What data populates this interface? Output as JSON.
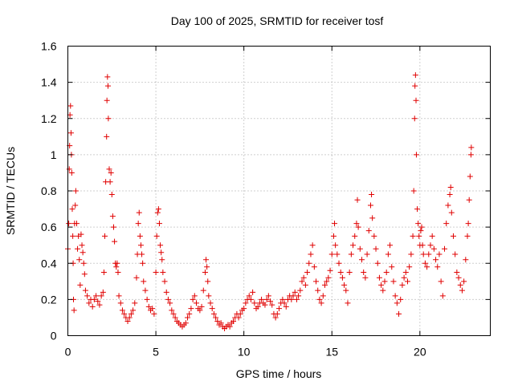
{
  "chart_data": {
    "type": "scatter",
    "title": "Day 100 of 2025, SRMTID for receiver tosf",
    "xlabel": "GPS time / hours",
    "ylabel": "SRMTID / TECUs",
    "xlim": [
      0,
      24
    ],
    "ylim": [
      0,
      1.6
    ],
    "x_ticks": [
      0,
      5,
      10,
      15,
      20
    ],
    "x_tick_labels": [
      "0",
      "5",
      "10",
      "15",
      "20"
    ],
    "y_ticks": [
      0,
      0.2,
      0.4,
      0.6,
      0.8,
      1,
      1.2,
      1.4,
      1.6
    ],
    "y_tick_labels": [
      "0",
      "0.2",
      "0.4",
      "0.6",
      "0.8",
      "1",
      "1.2",
      "1.4",
      "1.6"
    ],
    "grid": true,
    "marker": "plus",
    "series": [
      {
        "name": "SRMTID",
        "color": "#e00000",
        "points": [
          [
            0.0,
            0.48
          ],
          [
            0.05,
            0.62
          ],
          [
            0.08,
            0.92
          ],
          [
            0.1,
            1.05
          ],
          [
            0.12,
            1.22
          ],
          [
            0.15,
            1.27
          ],
          [
            0.18,
            1.12
          ],
          [
            0.2,
            1.0
          ],
          [
            0.22,
            0.9
          ],
          [
            0.25,
            0.7
          ],
          [
            0.28,
            0.55
          ],
          [
            0.3,
            0.4
          ],
          [
            0.32,
            0.2
          ],
          [
            0.35,
            0.14
          ],
          [
            0.38,
            0.62
          ],
          [
            0.42,
            0.72
          ],
          [
            0.45,
            0.8
          ],
          [
            0.5,
            0.62
          ],
          [
            0.55,
            0.48
          ],
          [
            0.6,
            0.55
          ],
          [
            0.65,
            0.42
          ],
          [
            0.7,
            0.28
          ],
          [
            0.75,
            0.56
          ],
          [
            0.8,
            0.5
          ],
          [
            0.85,
            0.46
          ],
          [
            0.9,
            0.4
          ],
          [
            0.95,
            0.34
          ],
          [
            1.0,
            0.25
          ],
          [
            1.1,
            0.22
          ],
          [
            1.2,
            0.18
          ],
          [
            1.3,
            0.2
          ],
          [
            1.4,
            0.16
          ],
          [
            1.5,
            0.2
          ],
          [
            1.6,
            0.22
          ],
          [
            1.7,
            0.19
          ],
          [
            1.8,
            0.17
          ],
          [
            1.9,
            0.22
          ],
          [
            2.0,
            0.24
          ],
          [
            2.05,
            0.35
          ],
          [
            2.1,
            0.55
          ],
          [
            2.15,
            0.85
          ],
          [
            2.2,
            1.1
          ],
          [
            2.22,
            1.3
          ],
          [
            2.25,
            1.43
          ],
          [
            2.28,
            1.38
          ],
          [
            2.3,
            1.2
          ],
          [
            2.35,
            0.92
          ],
          [
            2.4,
            0.85
          ],
          [
            2.45,
            0.9
          ],
          [
            2.5,
            0.78
          ],
          [
            2.55,
            0.66
          ],
          [
            2.6,
            0.6
          ],
          [
            2.65,
            0.52
          ],
          [
            2.7,
            0.4
          ],
          [
            2.75,
            0.38
          ],
          [
            2.8,
            0.4
          ],
          [
            2.85,
            0.35
          ],
          [
            2.9,
            0.22
          ],
          [
            3.0,
            0.18
          ],
          [
            3.1,
            0.14
          ],
          [
            3.2,
            0.12
          ],
          [
            3.3,
            0.1
          ],
          [
            3.4,
            0.08
          ],
          [
            3.5,
            0.1
          ],
          [
            3.6,
            0.12
          ],
          [
            3.7,
            0.14
          ],
          [
            3.8,
            0.18
          ],
          [
            3.9,
            0.32
          ],
          [
            3.95,
            0.45
          ],
          [
            4.0,
            0.62
          ],
          [
            4.05,
            0.68
          ],
          [
            4.1,
            0.55
          ],
          [
            4.15,
            0.5
          ],
          [
            4.2,
            0.45
          ],
          [
            4.25,
            0.4
          ],
          [
            4.3,
            0.3
          ],
          [
            4.4,
            0.25
          ],
          [
            4.5,
            0.2
          ],
          [
            4.6,
            0.16
          ],
          [
            4.7,
            0.14
          ],
          [
            4.8,
            0.15
          ],
          [
            4.9,
            0.12
          ],
          [
            5.0,
            0.35
          ],
          [
            5.05,
            0.55
          ],
          [
            5.1,
            0.68
          ],
          [
            5.15,
            0.7
          ],
          [
            5.2,
            0.62
          ],
          [
            5.25,
            0.5
          ],
          [
            5.3,
            0.46
          ],
          [
            5.35,
            0.42
          ],
          [
            5.4,
            0.35
          ],
          [
            5.5,
            0.3
          ],
          [
            5.6,
            0.24
          ],
          [
            5.7,
            0.2
          ],
          [
            5.8,
            0.18
          ],
          [
            5.9,
            0.14
          ],
          [
            6.0,
            0.12
          ],
          [
            6.1,
            0.1
          ],
          [
            6.2,
            0.08
          ],
          [
            6.3,
            0.07
          ],
          [
            6.4,
            0.06
          ],
          [
            6.5,
            0.05
          ],
          [
            6.6,
            0.06
          ],
          [
            6.7,
            0.07
          ],
          [
            6.8,
            0.1
          ],
          [
            6.9,
            0.12
          ],
          [
            7.0,
            0.15
          ],
          [
            7.1,
            0.2
          ],
          [
            7.2,
            0.22
          ],
          [
            7.3,
            0.18
          ],
          [
            7.4,
            0.15
          ],
          [
            7.5,
            0.14
          ],
          [
            7.6,
            0.16
          ],
          [
            7.7,
            0.25
          ],
          [
            7.8,
            0.35
          ],
          [
            7.85,
            0.42
          ],
          [
            7.9,
            0.38
          ],
          [
            7.95,
            0.3
          ],
          [
            8.0,
            0.22
          ],
          [
            8.1,
            0.18
          ],
          [
            8.2,
            0.15
          ],
          [
            8.3,
            0.12
          ],
          [
            8.4,
            0.1
          ],
          [
            8.5,
            0.08
          ],
          [
            8.6,
            0.06
          ],
          [
            8.7,
            0.07
          ],
          [
            8.8,
            0.05
          ],
          [
            8.9,
            0.04
          ],
          [
            9.0,
            0.05
          ],
          [
            9.1,
            0.06
          ],
          [
            9.2,
            0.05
          ],
          [
            9.3,
            0.07
          ],
          [
            9.4,
            0.08
          ],
          [
            9.5,
            0.1
          ],
          [
            9.6,
            0.12
          ],
          [
            9.7,
            0.1
          ],
          [
            9.8,
            0.12
          ],
          [
            9.9,
            0.14
          ],
          [
            10.0,
            0.15
          ],
          [
            10.1,
            0.18
          ],
          [
            10.2,
            0.2
          ],
          [
            10.3,
            0.22
          ],
          [
            10.4,
            0.2
          ],
          [
            10.5,
            0.24
          ],
          [
            10.6,
            0.18
          ],
          [
            10.7,
            0.15
          ],
          [
            10.8,
            0.16
          ],
          [
            10.9,
            0.18
          ],
          [
            11.0,
            0.2
          ],
          [
            11.1,
            0.18
          ],
          [
            11.2,
            0.17
          ],
          [
            11.3,
            0.2
          ],
          [
            11.4,
            0.22
          ],
          [
            11.5,
            0.19
          ],
          [
            11.6,
            0.17
          ],
          [
            11.7,
            0.12
          ],
          [
            11.8,
            0.1
          ],
          [
            11.9,
            0.12
          ],
          [
            12.0,
            0.15
          ],
          [
            12.1,
            0.18
          ],
          [
            12.2,
            0.2
          ],
          [
            12.3,
            0.18
          ],
          [
            12.4,
            0.16
          ],
          [
            12.5,
            0.2
          ],
          [
            12.6,
            0.22
          ],
          [
            12.7,
            0.2
          ],
          [
            12.8,
            0.22
          ],
          [
            12.9,
            0.24
          ],
          [
            13.0,
            0.2
          ],
          [
            13.1,
            0.22
          ],
          [
            13.2,
            0.25
          ],
          [
            13.3,
            0.3
          ],
          [
            13.4,
            0.32
          ],
          [
            13.5,
            0.28
          ],
          [
            13.6,
            0.35
          ],
          [
            13.7,
            0.4
          ],
          [
            13.8,
            0.45
          ],
          [
            13.9,
            0.5
          ],
          [
            14.0,
            0.38
          ],
          [
            14.1,
            0.3
          ],
          [
            14.2,
            0.25
          ],
          [
            14.3,
            0.2
          ],
          [
            14.4,
            0.18
          ],
          [
            14.5,
            0.22
          ],
          [
            14.6,
            0.28
          ],
          [
            14.7,
            0.3
          ],
          [
            14.8,
            0.32
          ],
          [
            14.9,
            0.36
          ],
          [
            15.0,
            0.45
          ],
          [
            15.1,
            0.55
          ],
          [
            15.15,
            0.62
          ],
          [
            15.2,
            0.5
          ],
          [
            15.3,
            0.45
          ],
          [
            15.4,
            0.4
          ],
          [
            15.5,
            0.35
          ],
          [
            15.6,
            0.32
          ],
          [
            15.7,
            0.28
          ],
          [
            15.8,
            0.25
          ],
          [
            15.9,
            0.18
          ],
          [
            16.0,
            0.35
          ],
          [
            16.1,
            0.45
          ],
          [
            16.2,
            0.5
          ],
          [
            16.3,
            0.55
          ],
          [
            16.4,
            0.62
          ],
          [
            16.45,
            0.75
          ],
          [
            16.5,
            0.6
          ],
          [
            16.6,
            0.48
          ],
          [
            16.7,
            0.42
          ],
          [
            16.8,
            0.35
          ],
          [
            16.9,
            0.32
          ],
          [
            17.0,
            0.45
          ],
          [
            17.1,
            0.58
          ],
          [
            17.2,
            0.72
          ],
          [
            17.25,
            0.78
          ],
          [
            17.3,
            0.65
          ],
          [
            17.4,
            0.55
          ],
          [
            17.5,
            0.48
          ],
          [
            17.6,
            0.4
          ],
          [
            17.7,
            0.32
          ],
          [
            17.8,
            0.28
          ],
          [
            17.9,
            0.25
          ],
          [
            18.0,
            0.3
          ],
          [
            18.1,
            0.35
          ],
          [
            18.2,
            0.45
          ],
          [
            18.3,
            0.5
          ],
          [
            18.4,
            0.38
          ],
          [
            18.5,
            0.3
          ],
          [
            18.6,
            0.22
          ],
          [
            18.7,
            0.18
          ],
          [
            18.8,
            0.12
          ],
          [
            18.9,
            0.2
          ],
          [
            19.0,
            0.28
          ],
          [
            19.1,
            0.32
          ],
          [
            19.2,
            0.35
          ],
          [
            19.3,
            0.3
          ],
          [
            19.4,
            0.38
          ],
          [
            19.5,
            0.45
          ],
          [
            19.6,
            0.55
          ],
          [
            19.65,
            0.8
          ],
          [
            19.7,
            1.2
          ],
          [
            19.72,
            1.38
          ],
          [
            19.75,
            1.44
          ],
          [
            19.78,
            1.3
          ],
          [
            19.8,
            1.0
          ],
          [
            19.85,
            0.7
          ],
          [
            19.9,
            0.62
          ],
          [
            19.95,
            0.55
          ],
          [
            20.0,
            0.5
          ],
          [
            20.05,
            0.58
          ],
          [
            20.1,
            0.6
          ],
          [
            20.15,
            0.5
          ],
          [
            20.2,
            0.45
          ],
          [
            20.3,
            0.4
          ],
          [
            20.4,
            0.38
          ],
          [
            20.5,
            0.45
          ],
          [
            20.6,
            0.5
          ],
          [
            20.7,
            0.55
          ],
          [
            20.8,
            0.48
          ],
          [
            20.9,
            0.42
          ],
          [
            21.0,
            0.38
          ],
          [
            21.1,
            0.45
          ],
          [
            21.2,
            0.3
          ],
          [
            21.3,
            0.22
          ],
          [
            21.4,
            0.48
          ],
          [
            21.5,
            0.62
          ],
          [
            21.6,
            0.72
          ],
          [
            21.7,
            0.78
          ],
          [
            21.75,
            0.82
          ],
          [
            21.8,
            0.68
          ],
          [
            21.9,
            0.55
          ],
          [
            22.0,
            0.45
          ],
          [
            22.1,
            0.35
          ],
          [
            22.2,
            0.32
          ],
          [
            22.3,
            0.28
          ],
          [
            22.4,
            0.25
          ],
          [
            22.5,
            0.3
          ],
          [
            22.6,
            0.42
          ],
          [
            22.7,
            0.55
          ],
          [
            22.75,
            0.62
          ],
          [
            22.8,
            0.75
          ],
          [
            22.85,
            0.88
          ],
          [
            22.9,
            1.0
          ],
          [
            22.92,
            1.04
          ]
        ]
      }
    ]
  }
}
